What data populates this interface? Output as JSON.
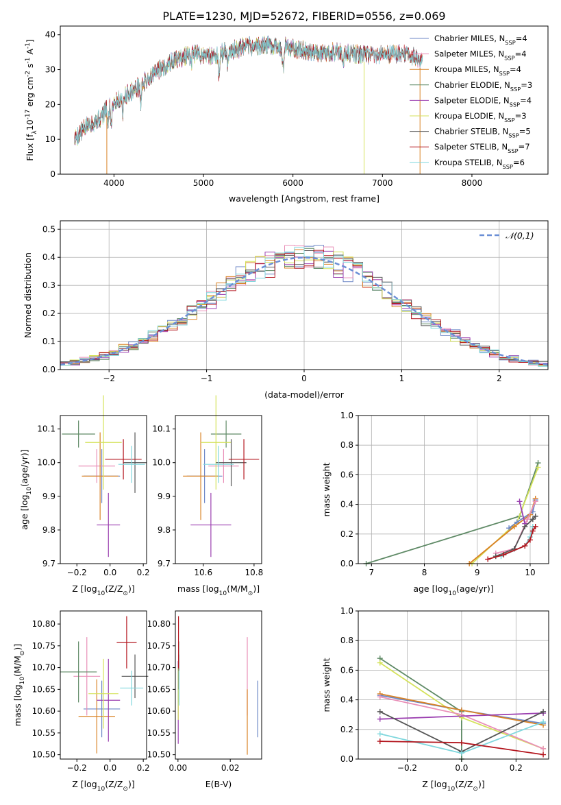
{
  "figure_title": "PLATE=1230, MJD=52672, FIBERID=0556, z=0.069",
  "colors": {
    "Chabrier MILES": "#6b86c6",
    "Salpeter MILES": "#e98fb8",
    "Kroupa MILES": "#d98224",
    "Chabrier ELODIE": "#5f8a66",
    "Salpeter ELODIE": "#9b3fb0",
    "Kroupa ELODIE": "#d4e25a",
    "Chabrier STELIB": "#555555",
    "Salpeter STELIB": "#b3151d",
    "Kroupa STELIB": "#7fd7dd",
    "normal": "#6b8fd6"
  },
  "chart_data": [
    {
      "type": "line",
      "title": "PLATE=1230, MJD=52672, FIBERID=0556, z=0.069",
      "xlabel": "wavelength [Angstrom, rest frame]",
      "ylabel": "Flux [f$_\\lambda$10$^{-17}$ erg cm$^{-2}$ s$^{-1}$ A$^{-1}$]",
      "xlim": [
        3400,
        8850
      ],
      "ylim": [
        0,
        42.5
      ],
      "xticks": [
        4000,
        5000,
        6000,
        7000,
        8000
      ],
      "yticks": [
        0,
        10,
        20,
        30,
        40
      ],
      "legend_position": "top-right",
      "continuum": [
        [
          3560,
          10
        ],
        [
          3700,
          14
        ],
        [
          3850,
          16
        ],
        [
          3950,
          20
        ],
        [
          4100,
          22
        ],
        [
          4300,
          25.5
        ],
        [
          4500,
          30
        ],
        [
          4700,
          33
        ],
        [
          4900,
          34.5
        ],
        [
          5100,
          34
        ],
        [
          5300,
          35.5
        ],
        [
          5500,
          36.5
        ],
        [
          5700,
          37
        ],
        [
          5900,
          36.5
        ],
        [
          6100,
          35.5
        ],
        [
          6300,
          35
        ],
        [
          6500,
          35
        ],
        [
          6700,
          34.5
        ],
        [
          6900,
          34
        ],
        [
          7100,
          34.5
        ],
        [
          7300,
          34.5
        ],
        [
          7450,
          32
        ]
      ],
      "absorption_dips": [
        [
          3933,
          6
        ],
        [
          3969,
          6
        ],
        [
          4101,
          4
        ],
        [
          4300,
          5
        ],
        [
          4861,
          3
        ],
        [
          5175,
          8
        ],
        [
          5270,
          3
        ],
        [
          5890,
          7
        ],
        [
          6563,
          2
        ]
      ],
      "glitches": [
        [
          3920,
          0
        ],
        [
          6795,
          0
        ],
        [
          7420,
          0
        ]
      ],
      "series": [
        {
          "name": "Chabrier MILES",
          "n_ssp": "4",
          "end": 7450
        },
        {
          "name": "Salpeter MILES",
          "n_ssp": "4",
          "end": 7450
        },
        {
          "name": "Kroupa MILES",
          "n_ssp": "4",
          "end": 7450
        },
        {
          "name": "Chabrier ELODIE",
          "n_ssp": "3",
          "end": 6800
        },
        {
          "name": "Salpeter ELODIE",
          "n_ssp": "4",
          "end": 6800
        },
        {
          "name": "Kroupa ELODIE",
          "n_ssp": "3",
          "end": 6800
        },
        {
          "name": "Chabrier STELIB",
          "n_ssp": "5",
          "end": 7450
        },
        {
          "name": "Salpeter STELIB",
          "n_ssp": "7",
          "end": 7450
        },
        {
          "name": "Kroupa STELIB",
          "n_ssp": "6",
          "end": 7450
        }
      ]
    },
    {
      "type": "histogram",
      "xlabel": "(data-model)/error",
      "ylabel": "Normed distribution",
      "xlim": [
        -2.5,
        2.5
      ],
      "ylim": [
        0,
        0.53
      ],
      "xticks": [
        -2,
        -1,
        0,
        1,
        2
      ],
      "yticks": [
        0.0,
        0.1,
        0.2,
        0.3,
        0.4,
        0.5
      ],
      "bin_width": 0.1,
      "grid": true,
      "legend_position": "top-right",
      "reference_curve": {
        "name": "$\\mathcal{N}(0,1)$",
        "mean": 0,
        "sigma": 1
      }
    },
    {
      "type": "scatter",
      "xlabel": "Z [log$_{10}$(Z/Z$_\\odot$)]",
      "ylabel": "age  [log$_{10}$(age/yr)]",
      "xlim": [
        -0.3,
        0.22
      ],
      "ylim": [
        9.7,
        10.14
      ],
      "xticks": [
        -0.2,
        0.0,
        0.2
      ],
      "yticks": [
        9.7,
        9.8,
        9.9,
        10.0,
        10.1
      ],
      "points": [
        {
          "x": -0.05,
          "xerr": 0.11,
          "y": 9.96,
          "yerr": 0.08,
          "color": "Chabrier MILES"
        },
        {
          "x": -0.08,
          "xerr": 0.11,
          "y": 9.99,
          "yerr": 0.05,
          "color": "Salpeter MILES"
        },
        {
          "x": -0.06,
          "xerr": 0.11,
          "y": 9.96,
          "yerr": 0.13,
          "color": "Kroupa MILES"
        },
        {
          "x": -0.19,
          "xerr": 0.1,
          "y": 10.085,
          "yerr": 0.04,
          "color": "Chabrier ELODIE"
        },
        {
          "x": -0.01,
          "xerr": 0.07,
          "y": 9.815,
          "yerr": 0.095,
          "color": "Salpeter ELODIE"
        },
        {
          "x": -0.04,
          "xerr": 0.11,
          "y": 10.06,
          "yerr": 0.14,
          "color": "Kroupa ELODIE"
        },
        {
          "x": 0.15,
          "xerr": 0.07,
          "y": 10.0,
          "yerr": 0.09,
          "color": "Chabrier STELIB"
        },
        {
          "x": 0.08,
          "xerr": 0.11,
          "y": 10.01,
          "yerr": 0.06,
          "color": "Salpeter STELIB"
        },
        {
          "x": 0.13,
          "xerr": 0.08,
          "y": 9.995,
          "yerr": 0.055,
          "color": "Kroupa STELIB"
        }
      ]
    },
    {
      "type": "scatter",
      "xlabel": "mass [log$_{10}$(M/M$_\\odot$)]",
      "ylabel": "",
      "xlim": [
        10.49,
        10.83
      ],
      "ylim": [
        9.7,
        10.14
      ],
      "xticks": [
        10.6,
        10.8
      ],
      "yticks": [
        9.7,
        9.8,
        9.9,
        10.0,
        10.1
      ],
      "points": [
        {
          "x": 10.605,
          "xerr": 0.07,
          "y": 9.96,
          "yerr": 0.08,
          "color": "Chabrier MILES"
        },
        {
          "x": 10.68,
          "xerr": 0.06,
          "y": 9.99,
          "yerr": 0.05,
          "color": "Salpeter MILES"
        },
        {
          "x": 10.59,
          "xerr": 0.07,
          "y": 9.96,
          "yerr": 0.13,
          "color": "Kroupa MILES"
        },
        {
          "x": 10.69,
          "xerr": 0.06,
          "y": 10.085,
          "yerr": 0.04,
          "color": "Chabrier ELODIE"
        },
        {
          "x": 10.63,
          "xerr": 0.08,
          "y": 9.815,
          "yerr": 0.095,
          "color": "Salpeter ELODIE"
        },
        {
          "x": 10.65,
          "xerr": 0.06,
          "y": 10.06,
          "yerr": 0.14,
          "color": "Kroupa ELODIE"
        },
        {
          "x": 10.71,
          "xerr": 0.06,
          "y": 10.0,
          "yerr": 0.07,
          "color": "Chabrier STELIB"
        },
        {
          "x": 10.76,
          "xerr": 0.06,
          "y": 10.01,
          "yerr": 0.06,
          "color": "Salpeter STELIB"
        },
        {
          "x": 10.66,
          "xerr": 0.06,
          "y": 9.995,
          "yerr": 0.055,
          "color": "Kroupa STELIB"
        }
      ]
    },
    {
      "type": "line",
      "xlabel": "age  [log$_{10}$(age/yr)]",
      "ylabel": "mass weight",
      "xlim": [
        6.75,
        10.35
      ],
      "ylim": [
        0,
        1.0
      ],
      "xticks": [
        7,
        8,
        9,
        10
      ],
      "yticks": [
        0.0,
        0.2,
        0.4,
        0.6,
        0.8,
        1.0
      ],
      "grid": true,
      "series": [
        {
          "color": "Chabrier ELODIE",
          "x": [
            6.9,
            9.8,
            10.15
          ],
          "y": [
            0.0,
            0.32,
            0.68
          ]
        },
        {
          "color": "Kroupa ELODIE",
          "x": [
            8.9,
            9.75,
            10.15
          ],
          "y": [
            0.0,
            0.28,
            0.65
          ]
        },
        {
          "color": "Chabrier MILES",
          "x": [
            9.6,
            9.75,
            10.05,
            10.1
          ],
          "y": [
            0.24,
            0.28,
            0.35,
            0.43
          ]
        },
        {
          "color": "Kroupa MILES",
          "x": [
            8.85,
            9.7,
            10.0,
            10.1
          ],
          "y": [
            0.0,
            0.25,
            0.33,
            0.44
          ]
        },
        {
          "color": "Salpeter MILES",
          "x": [
            9.35,
            9.7,
            9.95,
            10.1
          ],
          "y": [
            0.07,
            0.1,
            0.3,
            0.42
          ]
        },
        {
          "color": "Salpeter ELODIE",
          "x": [
            9.8,
            9.9
          ],
          "y": [
            0.42,
            0.27
          ]
        },
        {
          "color": "Chabrier STELIB",
          "x": [
            9.35,
            9.7,
            9.9,
            10.05,
            10.1
          ],
          "y": [
            0.05,
            0.1,
            0.25,
            0.3,
            0.32
          ]
        },
        {
          "color": "Kroupa STELIB",
          "x": [
            9.45,
            9.9,
            10.0,
            10.05
          ],
          "y": [
            0.05,
            0.12,
            0.18,
            0.25
          ]
        },
        {
          "color": "Salpeter STELIB",
          "x": [
            9.2,
            9.5,
            9.9,
            10.0,
            10.05,
            10.1
          ],
          "y": [
            0.03,
            0.06,
            0.12,
            0.16,
            0.22,
            0.25
          ]
        }
      ]
    },
    {
      "type": "scatter",
      "xlabel": "Z [log$_{10}$(Z/Z$_\\odot$)]",
      "ylabel": "mass [log$_{10}$(M/M$_\\odot$)]",
      "xlim": [
        -0.3,
        0.22
      ],
      "ylim": [
        10.49,
        10.83
      ],
      "xticks": [
        -0.2,
        0.0,
        0.2
      ],
      "yticks": [
        10.5,
        10.55,
        10.6,
        10.65,
        10.7,
        10.75,
        10.8
      ],
      "points": [
        {
          "x": -0.05,
          "xerr": 0.11,
          "y": 10.605,
          "yerr": 0.065,
          "color": "Chabrier MILES"
        },
        {
          "x": -0.14,
          "xerr": 0.08,
          "y": 10.68,
          "yerr": 0.09,
          "color": "Salpeter MILES"
        },
        {
          "x": -0.08,
          "xerr": 0.11,
          "y": 10.588,
          "yerr": 0.085,
          "color": "Kroupa MILES"
        },
        {
          "x": -0.19,
          "xerr": 0.11,
          "y": 10.69,
          "yerr": 0.07,
          "color": "Chabrier ELODIE"
        },
        {
          "x": -0.01,
          "xerr": 0.07,
          "y": 10.625,
          "yerr": 0.095,
          "color": "Salpeter ELODIE"
        },
        {
          "x": -0.04,
          "xerr": 0.09,
          "y": 10.64,
          "yerr": 0.08,
          "color": "Kroupa ELODIE"
        },
        {
          "x": 0.15,
          "xerr": 0.08,
          "y": 10.68,
          "yerr": 0.05,
          "color": "Chabrier STELIB"
        },
        {
          "x": 0.1,
          "xerr": 0.06,
          "y": 10.758,
          "yerr": 0.06,
          "color": "Salpeter STELIB"
        },
        {
          "x": 0.13,
          "xerr": 0.07,
          "y": 10.653,
          "yerr": 0.04,
          "color": "Kroupa STELIB"
        }
      ]
    },
    {
      "type": "scatter",
      "xlabel": "E(B-V)",
      "ylabel": "",
      "xlim": [
        -0.001,
        0.032
      ],
      "ylim": [
        10.49,
        10.83
      ],
      "xticks": [
        0.0,
        0.02
      ],
      "yticks": [
        10.5,
        10.55,
        10.6,
        10.65,
        10.7,
        10.75,
        10.8
      ],
      "points": [
        {
          "x": 0.0305,
          "y": 10.605,
          "yerr": 0.065,
          "color": "Chabrier MILES"
        },
        {
          "x": 0.0265,
          "y": 10.68,
          "yerr": 0.09,
          "color": "Salpeter MILES"
        },
        {
          "x": 0.0265,
          "y": 10.575,
          "yerr": 0.075,
          "color": "Kroupa MILES"
        },
        {
          "x": 0.0003,
          "y": 10.69,
          "yerr": 0.07,
          "color": "Chabrier ELODIE"
        },
        {
          "x": 0.0001,
          "y": 10.62,
          "yerr": 0.095,
          "color": "Salpeter ELODIE"
        },
        {
          "x": 0.0001,
          "y": 10.64,
          "yerr": 0.06,
          "color": "Kroupa ELODIE"
        },
        {
          "x": 0.0003,
          "y": 10.69,
          "yerr": 0.04,
          "color": "Chabrier STELIB"
        },
        {
          "x": 0.0002,
          "y": 10.758,
          "yerr": 0.06,
          "color": "Salpeter STELIB"
        },
        {
          "x": 0.0004,
          "y": 10.653,
          "yerr": 0.04,
          "color": "Kroupa STELIB"
        }
      ]
    },
    {
      "type": "line",
      "xlabel": "Z [log$_{10}$(Z/Z$_\\odot$)]",
      "ylabel": "mass weight",
      "xlim": [
        -0.38,
        0.32
      ],
      "ylim": [
        0,
        1.0
      ],
      "xticks": [
        -0.2,
        0.0,
        0.2
      ],
      "yticks": [
        0.0,
        0.2,
        0.4,
        0.6,
        0.8,
        1.0
      ],
      "grid": true,
      "series": [
        {
          "color": "Chabrier ELODIE",
          "x": [
            -0.3,
            0.0,
            0.0
          ],
          "y": [
            0.68,
            0.32,
            0.0
          ]
        },
        {
          "color": "Kroupa ELODIE",
          "x": [
            -0.3,
            0.0,
            0.3
          ],
          "y": [
            0.65,
            0.28,
            0.07
          ]
        },
        {
          "color": "Chabrier MILES",
          "x": [
            -0.3,
            0.0,
            0.3
          ],
          "y": [
            0.43,
            0.33,
            0.24
          ]
        },
        {
          "color": "Kroupa MILES",
          "x": [
            -0.3,
            0.0,
            0.3
          ],
          "y": [
            0.44,
            0.33,
            0.23
          ]
        },
        {
          "color": "Salpeter MILES",
          "x": [
            -0.3,
            0.0,
            0.3
          ],
          "y": [
            0.42,
            0.3,
            0.07
          ]
        },
        {
          "color": "Salpeter ELODIE",
          "x": [
            -0.3,
            0.3
          ],
          "y": [
            0.27,
            0.31
          ]
        },
        {
          "color": "Chabrier STELIB",
          "x": [
            -0.3,
            0.0,
            0.3
          ],
          "y": [
            0.32,
            0.05,
            0.32
          ]
        },
        {
          "color": "Kroupa STELIB",
          "x": [
            -0.3,
            0.0,
            0.3
          ],
          "y": [
            0.17,
            0.04,
            0.25
          ]
        },
        {
          "color": "Salpeter STELIB",
          "x": [
            -0.3,
            0.0,
            0.3
          ],
          "y": [
            0.12,
            0.11,
            0.03
          ]
        }
      ]
    }
  ]
}
